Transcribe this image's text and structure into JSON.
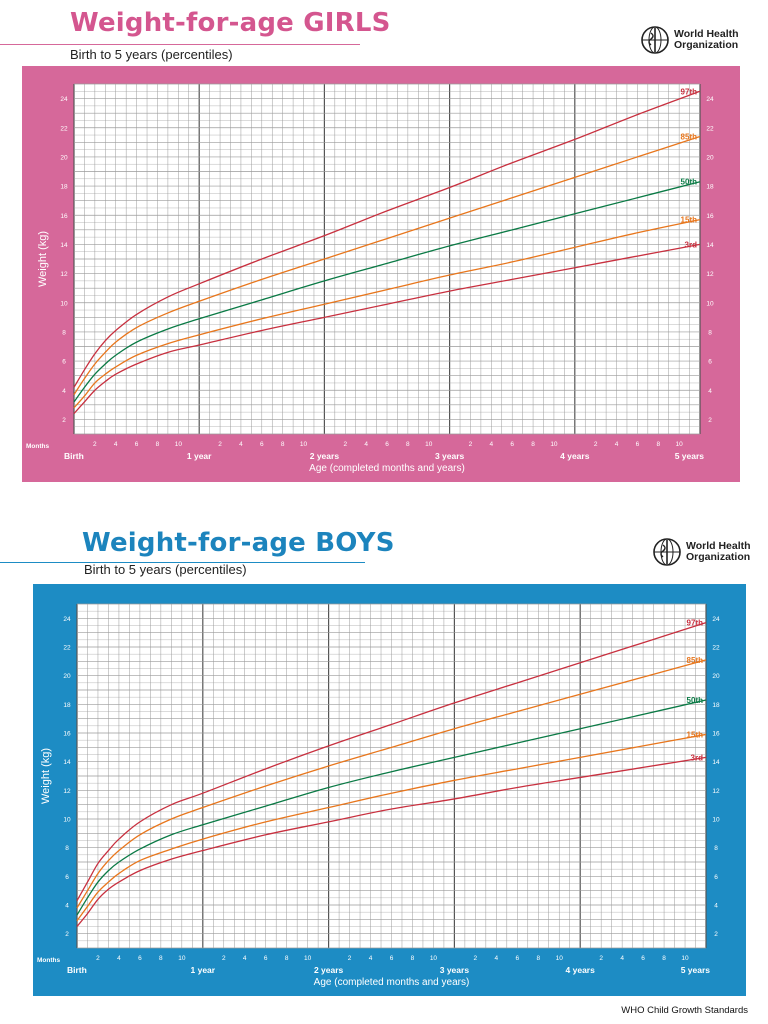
{
  "footer": "WHO Child Growth Standards",
  "who": {
    "line1": "World Health",
    "line2": "Organization"
  },
  "charts": [
    {
      "id": "girls",
      "title": "Weight-for-age GIRLS",
      "subtitle": "Birth to 5 years (percentiles)",
      "accent": "#d6689a",
      "title_color": "#d4568f",
      "frame_color": "#d6689a",
      "grid_color": "#9a9a9a",
      "ylabel": "Weight (kg)",
      "xlabel": "Age (completed months and years)",
      "months_label": "Months",
      "year_labels": [
        "Birth",
        "1 year",
        "2 years",
        "3 years",
        "4 years",
        "5 years"
      ],
      "month_ticks": [
        "2",
        "4",
        "6",
        "8",
        "10"
      ],
      "y_ticks": [
        "2",
        "4",
        "6",
        "8",
        "10",
        "12",
        "14",
        "16",
        "18",
        "20",
        "22",
        "24"
      ]
    },
    {
      "id": "boys",
      "title": "Weight-for-age BOYS",
      "subtitle": "Birth to 5 years (percentiles)",
      "accent": "#1d8cc4",
      "title_color": "#1c84bd",
      "frame_color": "#1d8cc4",
      "grid_color": "#9a9a9a",
      "ylabel": "Weight (kg)",
      "xlabel": "Age (completed months and years)",
      "months_label": "Months",
      "year_labels": [
        "Birth",
        "1 year",
        "2 years",
        "3 years",
        "4 years",
        "5 years"
      ],
      "month_ticks": [
        "2",
        "4",
        "6",
        "8",
        "10"
      ],
      "y_ticks": [
        "2",
        "4",
        "6",
        "8",
        "10",
        "12",
        "14",
        "16",
        "18",
        "20",
        "22",
        "24"
      ]
    }
  ],
  "chart_data": [
    {
      "type": "line",
      "title": "Weight-for-age GIRLS",
      "subtitle": "Birth to 5 years (percentiles)",
      "xlabel": "Age (completed months and years)",
      "ylabel": "Weight (kg)",
      "xlim": [
        0,
        60
      ],
      "ylim": [
        1,
        25
      ],
      "grid": true,
      "x": [
        0,
        1,
        2,
        3,
        4,
        6,
        9,
        12,
        18,
        24,
        30,
        36,
        42,
        48,
        54,
        60
      ],
      "series": [
        {
          "name": "3rd",
          "color": "#c8303f",
          "values": [
            2.4,
            3.2,
            4.0,
            4.6,
            5.1,
            5.8,
            6.6,
            7.1,
            8.1,
            9.0,
            9.9,
            10.8,
            11.6,
            12.4,
            13.2,
            14.0
          ]
        },
        {
          "name": "15th",
          "color": "#e8761c",
          "values": [
            2.8,
            3.6,
            4.5,
            5.1,
            5.6,
            6.4,
            7.2,
            7.8,
            8.9,
            9.9,
            10.9,
            11.9,
            12.8,
            13.8,
            14.8,
            15.7
          ]
        },
        {
          "name": "50th",
          "color": "#0a7a45",
          "values": [
            3.2,
            4.2,
            5.1,
            5.8,
            6.4,
            7.3,
            8.2,
            8.9,
            10.2,
            11.5,
            12.7,
            13.9,
            15.0,
            16.1,
            17.2,
            18.3
          ]
        },
        {
          "name": "85th",
          "color": "#e8761c",
          "values": [
            3.7,
            4.8,
            5.8,
            6.6,
            7.3,
            8.3,
            9.3,
            10.1,
            11.6,
            13.0,
            14.4,
            15.8,
            17.2,
            18.6,
            20.0,
            21.4
          ]
        },
        {
          "name": "97th",
          "color": "#c8303f",
          "values": [
            4.2,
            5.4,
            6.5,
            7.4,
            8.1,
            9.2,
            10.4,
            11.3,
            13.0,
            14.6,
            16.3,
            17.9,
            19.6,
            21.2,
            22.9,
            24.5
          ]
        }
      ]
    },
    {
      "type": "line",
      "title": "Weight-for-age BOYS",
      "subtitle": "Birth to 5 years (percentiles)",
      "xlabel": "Age (completed months and years)",
      "ylabel": "Weight (kg)",
      "xlim": [
        0,
        60
      ],
      "ylim": [
        1,
        25
      ],
      "grid": true,
      "x": [
        0,
        1,
        2,
        3,
        4,
        6,
        9,
        12,
        18,
        24,
        30,
        36,
        42,
        48,
        54,
        60
      ],
      "series": [
        {
          "name": "3rd",
          "color": "#c8303f",
          "values": [
            2.5,
            3.4,
            4.4,
            5.1,
            5.6,
            6.4,
            7.2,
            7.8,
            8.9,
            9.8,
            10.7,
            11.4,
            12.2,
            12.9,
            13.6,
            14.3
          ]
        },
        {
          "name": "15th",
          "color": "#e8761c",
          "values": [
            2.9,
            3.9,
            4.9,
            5.6,
            6.2,
            7.1,
            7.9,
            8.6,
            9.8,
            10.8,
            11.8,
            12.7,
            13.5,
            14.3,
            15.1,
            15.9
          ]
        },
        {
          "name": "50th",
          "color": "#0a7a45",
          "values": [
            3.3,
            4.5,
            5.6,
            6.4,
            7.0,
            7.9,
            8.9,
            9.6,
            10.9,
            12.2,
            13.3,
            14.3,
            15.3,
            16.3,
            17.3,
            18.3
          ]
        },
        {
          "name": "85th",
          "color": "#e8761c",
          "values": [
            3.8,
            5.0,
            6.2,
            7.1,
            7.8,
            8.9,
            10.0,
            10.8,
            12.3,
            13.7,
            15.0,
            16.3,
            17.5,
            18.7,
            19.9,
            21.1
          ]
        },
        {
          "name": "97th",
          "color": "#c8303f",
          "values": [
            4.3,
            5.6,
            6.9,
            7.8,
            8.6,
            9.8,
            11.0,
            11.8,
            13.5,
            15.1,
            16.6,
            18.1,
            19.5,
            20.9,
            22.3,
            23.7
          ]
        }
      ]
    }
  ]
}
